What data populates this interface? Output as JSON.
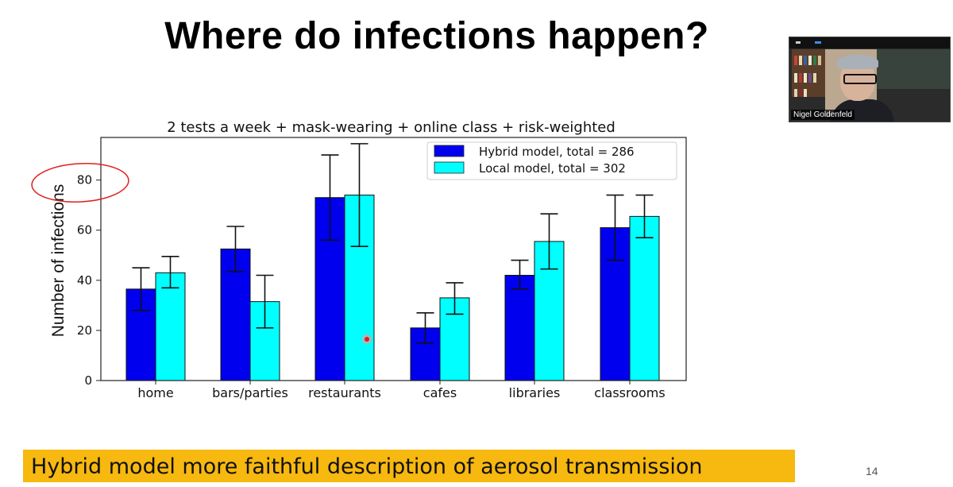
{
  "slide": {
    "title": "Where do infections happen?",
    "footer": "Hybrid model more faithful description of aerosol transmission",
    "page_number": "14"
  },
  "video": {
    "participant_name": "Nigel Goldenfeld"
  },
  "annotation": {
    "circled_label": "80"
  },
  "chart_data": {
    "type": "bar",
    "title": "2 tests a week + mask-wearing + online class + risk-weighted",
    "xlabel": "",
    "ylabel": "Number of infections",
    "ylim": [
      0,
      97
    ],
    "yticks": [
      0,
      20,
      40,
      60,
      80
    ],
    "categories": [
      "home",
      "bars/parties",
      "restaurants",
      "cafes",
      "libraries",
      "classrooms"
    ],
    "legend_position": "top-right",
    "series": [
      {
        "name": "Hybrid model, total = 286",
        "color": "#0000ee",
        "values": [
          36.5,
          52.5,
          73,
          21,
          42,
          61
        ],
        "err_low": [
          28,
          43.5,
          56,
          15,
          36.5,
          48
        ],
        "err_high": [
          45,
          61.5,
          90,
          27,
          48,
          74
        ]
      },
      {
        "name": "Local model, total = 302",
        "color": "#00ffff",
        "values": [
          43,
          31.5,
          74,
          33,
          55.5,
          65.5
        ],
        "err_low": [
          37,
          21,
          53.5,
          26.5,
          44.5,
          57
        ],
        "err_high": [
          49.5,
          42,
          94.5,
          39,
          66.5,
          74
        ]
      }
    ]
  }
}
